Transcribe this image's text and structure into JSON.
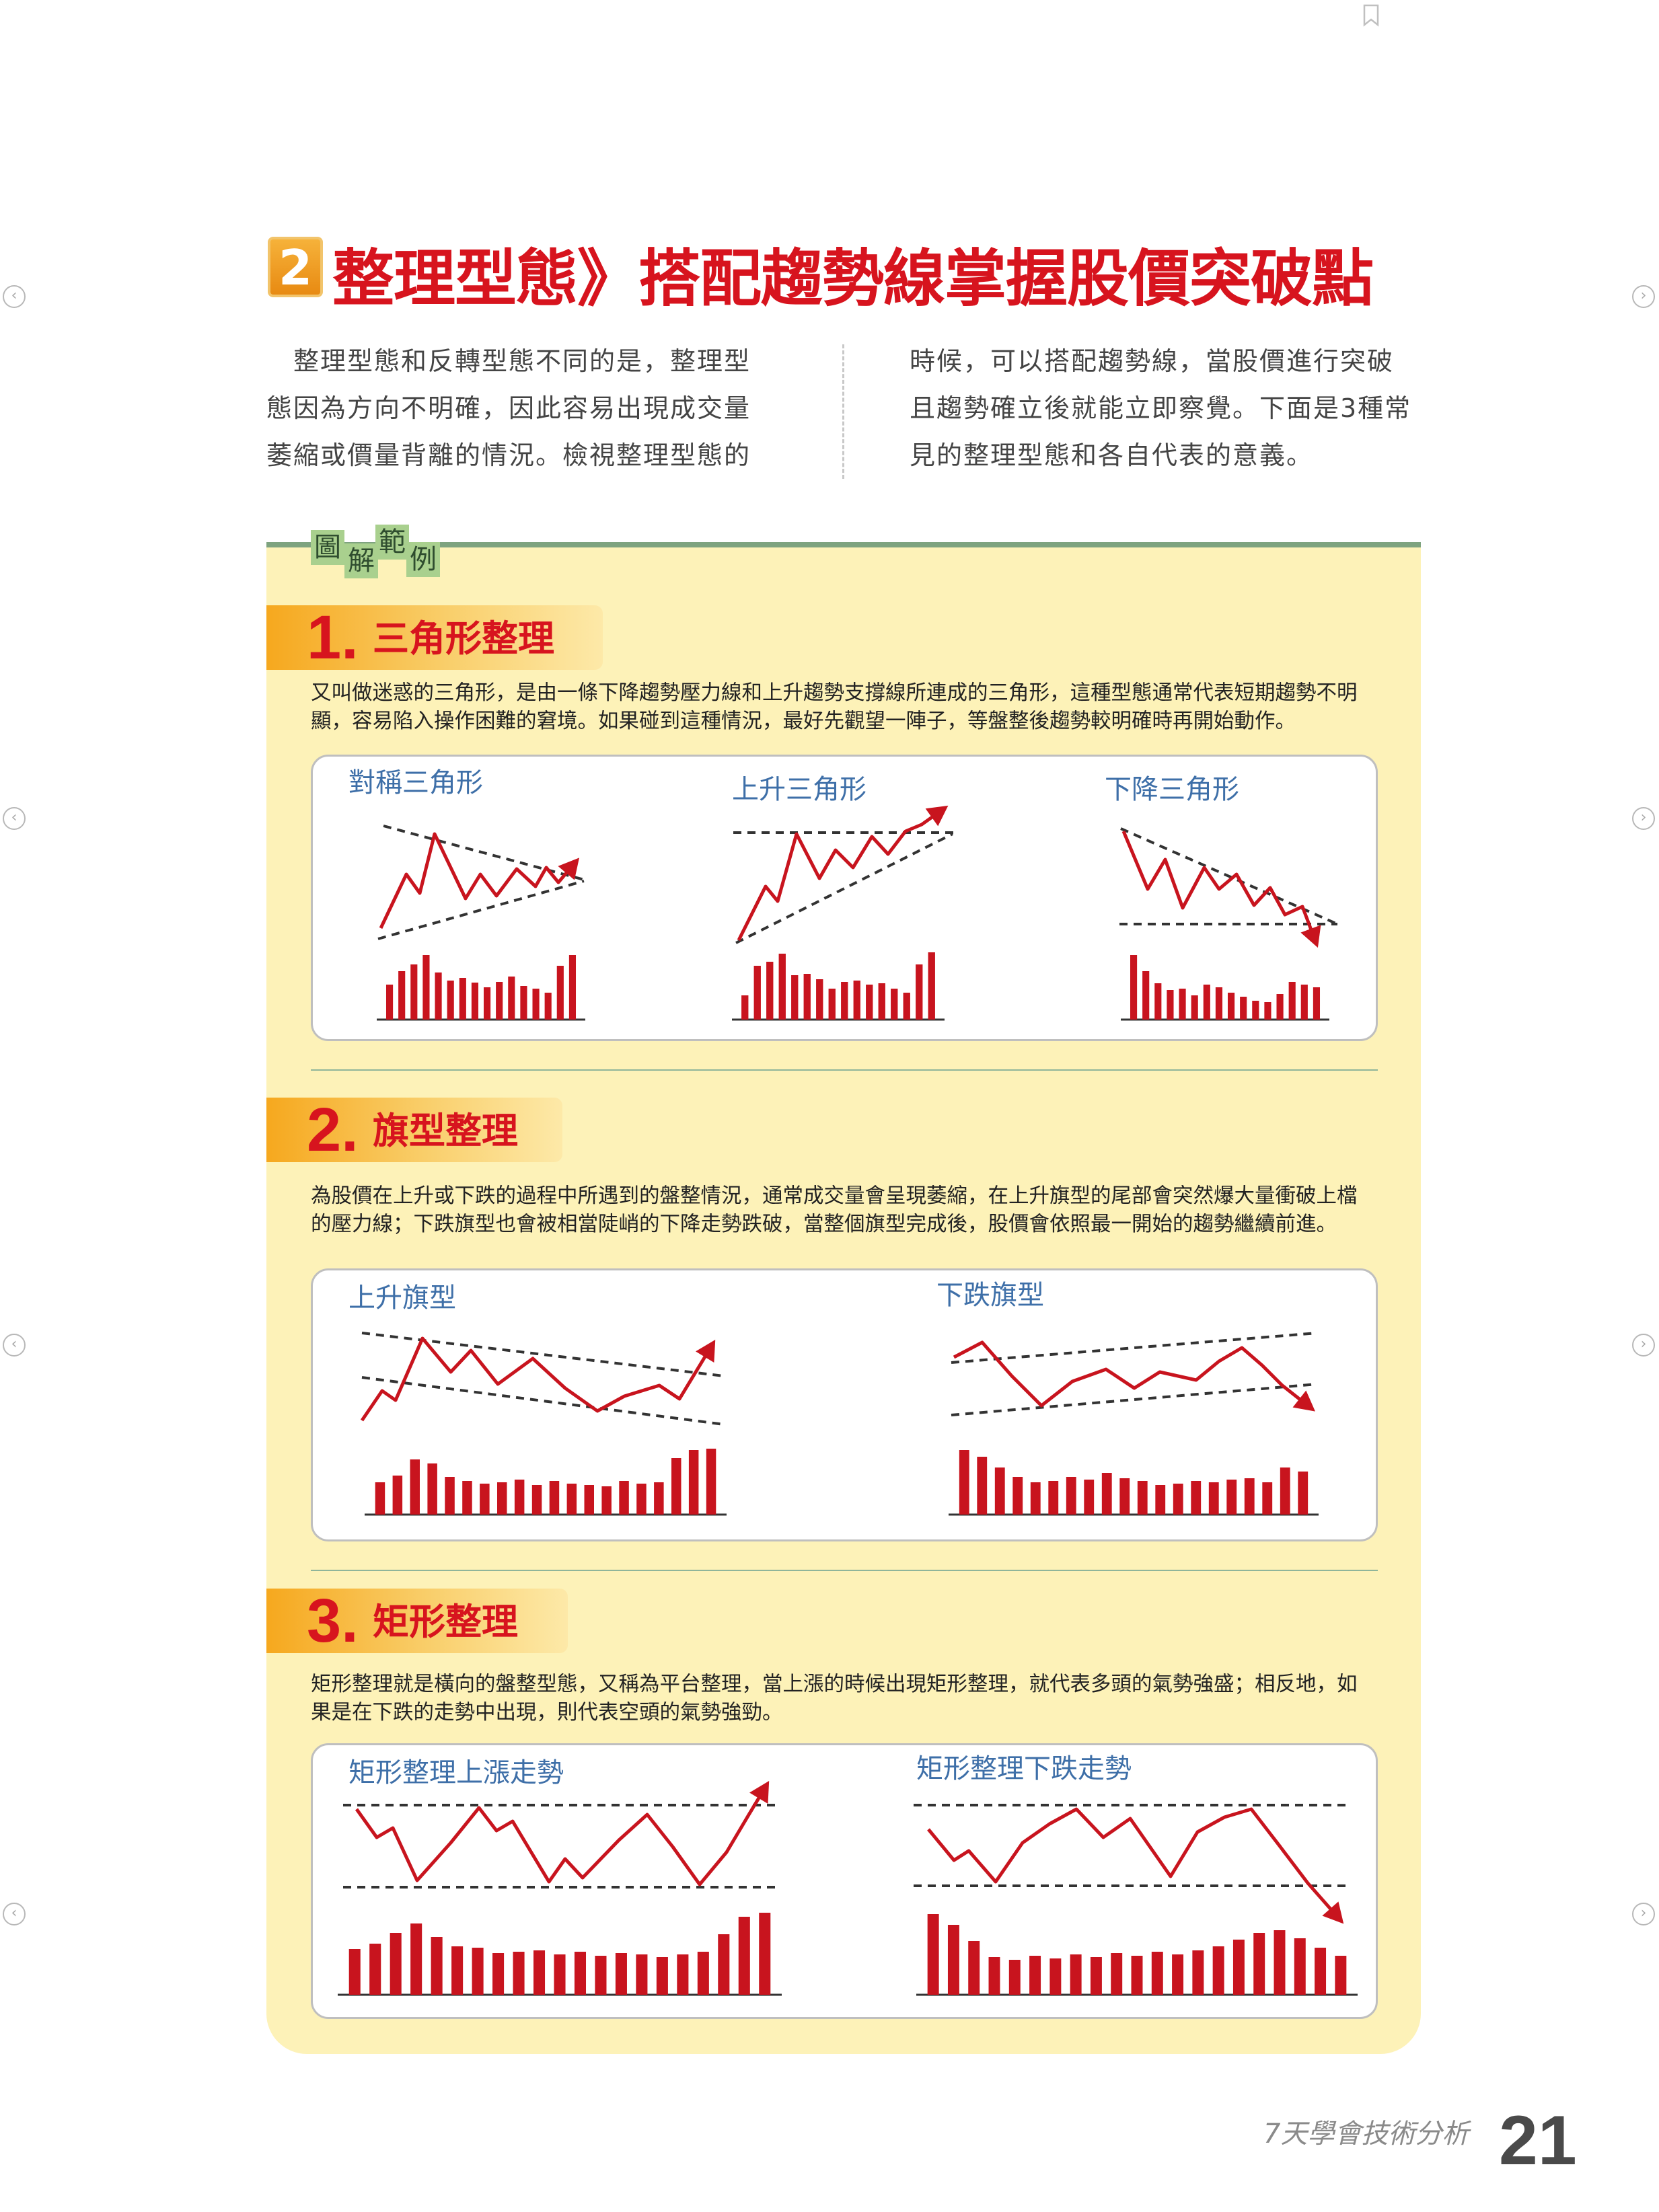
{
  "header": {
    "section_number": "2",
    "title": "整理型態》搭配趨勢線掌握股價突破點"
  },
  "intro": {
    "left": [
      "整理型態和反轉型態不同的是，整理型",
      "態因為方向不明確，因此容易出現成交量",
      "萎縮或價量背離的情況。檢視整理型態的"
    ],
    "right": [
      "時候，可以搭配趨勢線，當股價進行突破",
      "且趨勢確立後就能立即察覺。下面是3種常",
      "見的整理型態和各自代表的意義。"
    ]
  },
  "panel": {
    "tag_chars": [
      "圖",
      "解",
      "範",
      "例"
    ]
  },
  "sections": [
    {
      "number": "1.",
      "title": "三角形整理",
      "desc": [
        "又叫做迷惑的三角形，是由一條下降趨勢壓力線和上升趨勢支撐線所連成的三角形，這種型態通常代表短期趨勢不明",
        "顯，容易陷入操作困難的窘境。如果碰到這種情況，最好先觀望一陣子，等盤整後趨勢較明確時再開始動作。"
      ],
      "charts": [
        "對稱三角形",
        "上升三角形",
        "下降三角形"
      ]
    },
    {
      "number": "2.",
      "title": "旗型整理",
      "desc": [
        "為股價在上升或下跌的過程中所遇到的盤整情況，通常成交量會呈現萎縮，在上升旗型的尾部會突然爆大量衝破上檔",
        "的壓力線；下跌旗型也會被相當陡峭的下降走勢跌破，當整個旗型完成後，股價會依照最一開始的趨勢繼續前進。"
      ],
      "charts": [
        "上升旗型",
        "下跌旗型"
      ]
    },
    {
      "number": "3.",
      "title": "矩形整理",
      "desc": [
        "矩形整理就是橫向的盤整型態，又稱為平台整理，當上漲的時候出現矩形整理，就代表多頭的氣勢強盛；相反地，如",
        "果是在下跌的走勢中出現，則代表空頭的氣勢強勁。"
      ],
      "charts": [
        "矩形整理上漲走勢",
        "矩形整理下跌走勢"
      ]
    }
  ],
  "footer": {
    "book_title": "7天學會技術分析",
    "page_number": "21"
  },
  "colors": {
    "title_red": "#d7141e",
    "chart_red": "#c8141e",
    "panel_yellow": "#fdf2b8",
    "banner_orange": "#f6a81e",
    "label_blue": "#3e6fa8",
    "panel_green": "#7ea37f"
  },
  "icons": [
    "bookmark-icon",
    "nav-arrow-icon"
  ]
}
